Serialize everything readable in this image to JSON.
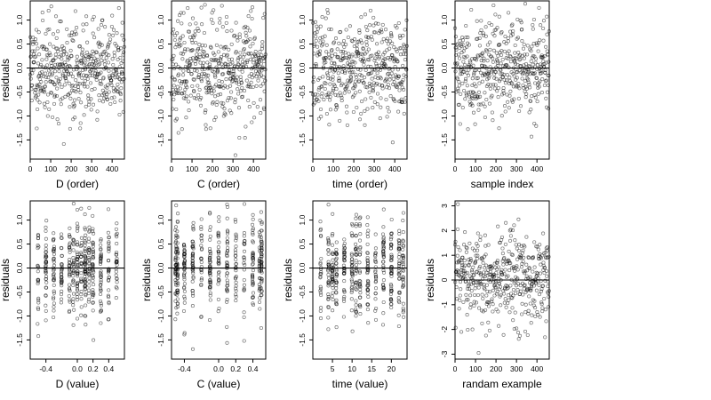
{
  "chart_data": [
    {
      "type": "scatter",
      "xlabel": "D (order)",
      "ylabel": "residuals",
      "xlim": [
        0,
        460
      ],
      "ylim": [
        -1.9,
        1.4
      ],
      "xticks": [
        0,
        100,
        200,
        300,
        400
      ],
      "yticks": [
        -1.5,
        -1.0,
        -0.5,
        0.0,
        0.5,
        1.0
      ],
      "xtick_labels": [
        "0",
        "100",
        "200",
        "300",
        "400"
      ],
      "ytick_labels": [
        "-1.5",
        "-1.0",
        "-0.5",
        "0.0",
        "0.5",
        "1.0"
      ],
      "hline": 0,
      "n_points": 460,
      "x_mode": "order",
      "seed": 11
    },
    {
      "type": "scatter",
      "xlabel": "C (order)",
      "ylabel": "residuals",
      "xlim": [
        0,
        460
      ],
      "ylim": [
        -1.9,
        1.4
      ],
      "xticks": [
        0,
        100,
        200,
        300,
        400
      ],
      "yticks": [
        -1.5,
        -1.0,
        -0.5,
        0.0,
        0.5,
        1.0
      ],
      "xtick_labels": [
        "0",
        "100",
        "200",
        "300",
        "400"
      ],
      "ytick_labels": [
        "-1.5",
        "-1.0",
        "-0.5",
        "0.0",
        "0.5",
        "1.0"
      ],
      "hline": 0,
      "n_points": 460,
      "x_mode": "order",
      "seed": 23
    },
    {
      "type": "scatter",
      "xlabel": "time (order)",
      "ylabel": "residuals",
      "xlim": [
        0,
        460
      ],
      "ylim": [
        -1.9,
        1.4
      ],
      "xticks": [
        0,
        100,
        200,
        300,
        400
      ],
      "yticks": [
        -1.5,
        -1.0,
        -0.5,
        0.0,
        0.5,
        1.0
      ],
      "xtick_labels": [
        "0",
        "100",
        "200",
        "300",
        "400"
      ],
      "ytick_labels": [
        "-1.5",
        "-1.0",
        "-0.5",
        "0.0",
        "0.5",
        "1.0"
      ],
      "hline": 0,
      "n_points": 460,
      "x_mode": "order",
      "seed": 37
    },
    {
      "type": "scatter",
      "xlabel": "sample index",
      "ylabel": "residuals",
      "xlim": [
        0,
        460
      ],
      "ylim": [
        -1.9,
        1.4
      ],
      "xticks": [
        0,
        100,
        200,
        300,
        400
      ],
      "yticks": [
        -1.5,
        -1.0,
        -0.5,
        0.0,
        0.5,
        1.0
      ],
      "xtick_labels": [
        "0",
        "100",
        "200",
        "300",
        "400"
      ],
      "ytick_labels": [
        "-1.5",
        "-1.0",
        "-0.5",
        "0.0",
        "0.5",
        "1.0"
      ],
      "hline": 0,
      "n_points": 460,
      "x_mode": "order",
      "seed": 41
    },
    {
      "type": "scatter",
      "xlabel": "D (value)",
      "ylabel": "residuals",
      "xlim": [
        -0.6,
        0.6
      ],
      "ylim": [
        -1.9,
        1.4
      ],
      "xticks": [
        -0.4,
        0.0,
        0.2,
        0.4
      ],
      "yticks": [
        -1.5,
        -1.0,
        -0.5,
        0.0,
        0.5,
        1.0
      ],
      "xtick_labels": [
        "-0.4",
        "0.0",
        "0.2",
        "0.4"
      ],
      "ytick_labels": [
        "-1.5",
        "-1.0",
        "-0.5",
        "0.0",
        "0.5",
        "1.0"
      ],
      "hline": 0,
      "n_points": 460,
      "x_mode": "levels",
      "levels": [
        -0.5,
        -0.4,
        -0.3,
        -0.2,
        -0.1,
        -0.05,
        0.0,
        0.05,
        0.1,
        0.15,
        0.2,
        0.3,
        0.4,
        0.5
      ],
      "seed": 53
    },
    {
      "type": "scatter",
      "xlabel": "C (value)",
      "ylabel": "residuals",
      "xlim": [
        -0.55,
        0.55
      ],
      "ylim": [
        -1.9,
        1.4
      ],
      "xticks": [
        -0.4,
        0.0,
        0.2,
        0.4
      ],
      "yticks": [
        -1.5,
        -1.0,
        -0.5,
        0.0,
        0.5,
        1.0
      ],
      "xtick_labels": [
        "-0.4",
        "0.0",
        "0.2",
        "0.4"
      ],
      "ytick_labels": [
        "-1.5",
        "-1.0",
        "-0.5",
        "0.0",
        "0.5",
        "1.0"
      ],
      "hline": 0,
      "n_points": 460,
      "x_mode": "levels",
      "levels": [
        -0.5,
        -0.48,
        -0.4,
        -0.3,
        -0.2,
        -0.1,
        0.0,
        0.1,
        0.2,
        0.3,
        0.4,
        0.48,
        0.5
      ],
      "seed": 67
    },
    {
      "type": "scatter",
      "xlabel": "time (value)",
      "ylabel": "residuals",
      "xlim": [
        0,
        24
      ],
      "ylim": [
        -1.9,
        1.4
      ],
      "xticks": [
        5,
        10,
        15,
        20
      ],
      "yticks": [
        -1.5,
        -1.0,
        -0.5,
        0.0,
        0.5,
        1.0
      ],
      "xtick_labels": [
        "5",
        "10",
        "15",
        "20"
      ],
      "ytick_labels": [
        "-1.5",
        "-1.0",
        "-0.5",
        "0.0",
        "0.5",
        "1.0"
      ],
      "hline": 0,
      "n_points": 460,
      "x_mode": "levels",
      "levels": [
        2,
        4,
        5,
        6,
        8,
        10,
        11,
        12,
        14,
        16,
        18,
        20,
        22,
        23
      ],
      "seed": 79
    },
    {
      "type": "scatter",
      "xlabel": "randam example",
      "ylabel": "residuals",
      "xlim": [
        0,
        460
      ],
      "ylim": [
        -3.2,
        3.2
      ],
      "xticks": [
        0,
        100,
        200,
        300,
        400
      ],
      "yticks": [
        -3,
        -2,
        -1,
        0,
        1,
        2,
        3
      ],
      "xtick_labels": [
        "0",
        "100",
        "200",
        "300",
        "400"
      ],
      "ytick_labels": [
        "-3",
        "-2",
        "-1",
        "0",
        "1",
        "2",
        "3"
      ],
      "hline": 0,
      "n_points": 460,
      "x_mode": "order",
      "sd": 1.0,
      "seed": 97
    }
  ]
}
